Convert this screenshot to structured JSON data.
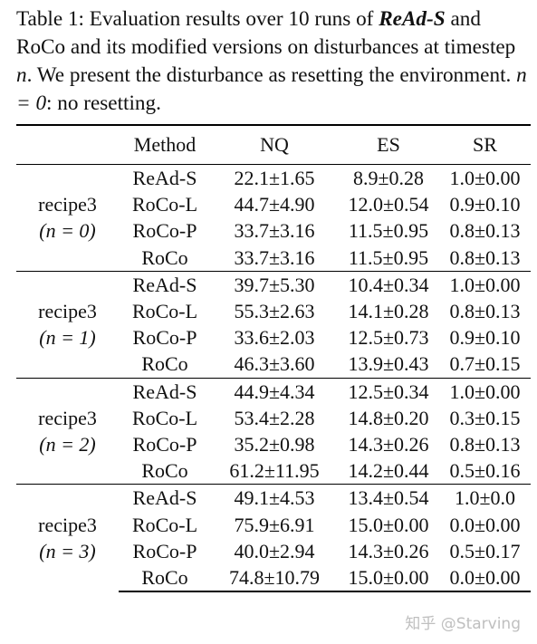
{
  "caption": {
    "label": "Table 1:",
    "text_before": " Evaluation results over 10 runs of ",
    "method_name": "ReAd-S",
    "text_middle": " and RoCo and its modified versions on disturbances at timestep ",
    "var_n": "n",
    "text_after": ". We present the disturbance as resetting the environment. ",
    "condition": "n = 0",
    "condition_note": ": no resetting."
  },
  "table": {
    "headers": [
      "",
      "Method",
      "NQ",
      "ES",
      "SR"
    ],
    "groups": [
      {
        "label": "recipe3",
        "condition": "(n = 0)",
        "rows": [
          {
            "method": "ReAd-S",
            "nq": "22.1±1.65",
            "es": "8.9±0.28",
            "sr": "1.0±0.00"
          },
          {
            "method": "RoCo-L",
            "nq": "44.7±4.90",
            "es": "12.0±0.54",
            "sr": "0.9±0.10"
          },
          {
            "method": "RoCo-P",
            "nq": "33.7±3.16",
            "es": "11.5±0.95",
            "sr": "0.8±0.13"
          },
          {
            "method": "RoCo",
            "nq": "33.7±3.16",
            "es": "11.5±0.95",
            "sr": "0.8±0.13"
          }
        ]
      },
      {
        "label": "recipe3",
        "condition": "(n = 1)",
        "rows": [
          {
            "method": "ReAd-S",
            "nq": "39.7±5.30",
            "es": "10.4±0.34",
            "sr": "1.0±0.00"
          },
          {
            "method": "RoCo-L",
            "nq": "55.3±2.63",
            "es": "14.1±0.28",
            "sr": "0.8±0.13"
          },
          {
            "method": "RoCo-P",
            "nq": "33.6±2.03",
            "es": "12.5±0.73",
            "sr": "0.9±0.10"
          },
          {
            "method": "RoCo",
            "nq": "46.3±3.60",
            "es": "13.9±0.43",
            "sr": "0.7±0.15"
          }
        ]
      },
      {
        "label": "recipe3",
        "condition": "(n = 2)",
        "rows": [
          {
            "method": "ReAd-S",
            "nq": "44.9±4.34",
            "es": "12.5±0.34",
            "sr": "1.0±0.00"
          },
          {
            "method": "RoCo-L",
            "nq": "53.4±2.28",
            "es": "14.8±0.20",
            "sr": "0.3±0.15"
          },
          {
            "method": "RoCo-P",
            "nq": "35.2±0.98",
            "es": "14.3±0.26",
            "sr": "0.8±0.13"
          },
          {
            "method": "RoCo",
            "nq": "61.2±11.95",
            "es": "14.2±0.44",
            "sr": "0.5±0.16"
          }
        ]
      },
      {
        "label": "recipe3",
        "condition": "(n = 3)",
        "rows": [
          {
            "method": "ReAd-S",
            "nq": "49.1±4.53",
            "es": "13.4±0.54",
            "sr": "1.0±0.0"
          },
          {
            "method": "RoCo-L",
            "nq": "75.9±6.91",
            "es": "15.0±0.00",
            "sr": "0.0±0.00"
          },
          {
            "method": "RoCo-P",
            "nq": "40.0±2.94",
            "es": "14.3±0.26",
            "sr": "0.5±0.17"
          },
          {
            "method": "RoCo",
            "nq": "74.8±10.79",
            "es": "15.0±0.00",
            "sr": "0.0±0.00"
          }
        ]
      }
    ]
  },
  "watermark": "知乎 @Starving"
}
